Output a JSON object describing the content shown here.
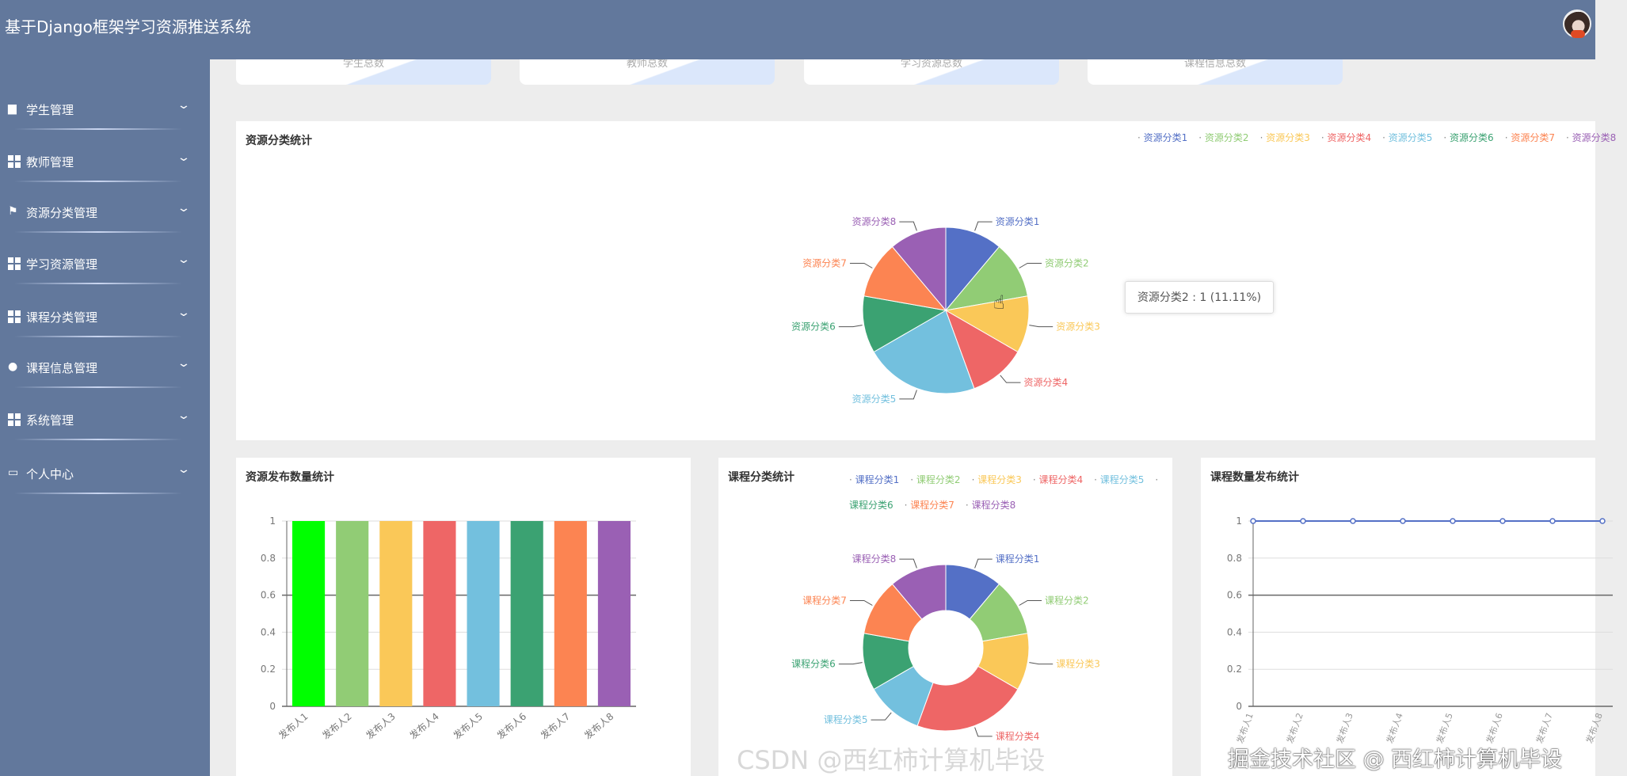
{
  "header": {
    "title": "基于Django框架学习资源推送系统",
    "avatar": "user-avatar"
  },
  "sidebar": {
    "items": [
      {
        "label": "学生管理",
        "icon": "chat-icon"
      },
      {
        "label": "教师管理",
        "icon": "grid-icon"
      },
      {
        "label": "资源分类管理",
        "icon": "flag-icon"
      },
      {
        "label": "学习资源管理",
        "icon": "grid-icon"
      },
      {
        "label": "课程分类管理",
        "icon": "grid-icon"
      },
      {
        "label": "课程信息管理",
        "icon": "bulb-icon"
      },
      {
        "label": "系统管理",
        "icon": "grid-icon"
      },
      {
        "label": "个人中心",
        "icon": "card-icon"
      }
    ]
  },
  "stats": [
    {
      "label": "学生总数"
    },
    {
      "label": "教师总数"
    },
    {
      "label": "学习资源总数"
    },
    {
      "label": "课程信息总数"
    }
  ],
  "tooltip": {
    "text": "资源分类2 : 1 (11.11%)"
  },
  "watermark": {
    "text": "掘金技术社区 @ 西红柿计算机毕设",
    "text2": "CSDN @西红柿计算机毕设"
  },
  "colors": [
    "#5470c6",
    "#91cc75",
    "#fac858",
    "#ee6666",
    "#73c0de",
    "#3ba272",
    "#fc8452",
    "#9a60b4"
  ],
  "chart_data": [
    {
      "type": "pie",
      "title": "资源分类统计",
      "legend_position": "top-right",
      "categories": [
        "资源分类1",
        "资源分类2",
        "资源分类3",
        "资源分类4",
        "资源分类5",
        "资源分类6",
        "资源分类7",
        "资源分类8"
      ],
      "values": [
        1,
        1,
        1,
        1,
        2,
        1,
        1,
        1
      ]
    },
    {
      "type": "bar",
      "title": "资源发布数量统计",
      "categories": [
        "发布人1",
        "发布人2",
        "发布人3",
        "发布人4",
        "发布人5",
        "发布人6",
        "发布人7",
        "发布人8"
      ],
      "values": [
        1,
        1,
        1,
        1,
        1,
        1,
        1,
        1
      ],
      "ylim": [
        0,
        1
      ],
      "yticks": [
        "0",
        "0.2",
        "0.4",
        "0.6",
        "0.8",
        "1"
      ],
      "bar_colors": [
        "#00ff00",
        "#91cc75",
        "#fac858",
        "#ee6666",
        "#73c0de",
        "#3ba272",
        "#fc8452",
        "#9a60b4"
      ]
    },
    {
      "type": "pie",
      "subtype": "donut",
      "title": "课程分类统计",
      "legend_position": "top",
      "categories": [
        "课程分类1",
        "课程分类2",
        "课程分类3",
        "课程分类4",
        "课程分类5",
        "课程分类6",
        "课程分类7",
        "课程分类8"
      ],
      "values": [
        1,
        1,
        1,
        2,
        1,
        1,
        1,
        1
      ]
    },
    {
      "type": "line",
      "title": "课程数量发布统计",
      "categories": [
        "发布人1",
        "发布人2",
        "发布人3",
        "发布人4",
        "发布人5",
        "发布人6",
        "发布人7",
        "发布人8"
      ],
      "values": [
        1,
        1,
        1,
        1,
        1,
        1,
        1,
        1
      ],
      "ylim": [
        0,
        1
      ],
      "yticks": [
        "0",
        "0.2",
        "0.4",
        "0.6",
        "0.8",
        "1"
      ],
      "line_color": "#5470c6"
    }
  ]
}
